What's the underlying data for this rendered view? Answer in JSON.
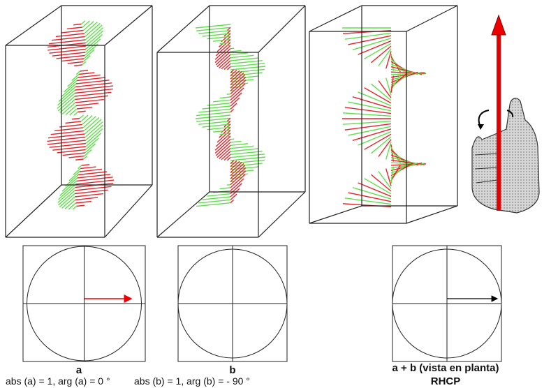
{
  "panels": [
    {
      "label": "a",
      "caption": "abs (a) = 1, arg (a) = 0 °"
    },
    {
      "label": "b",
      "caption": "abs (b) = 1, arg (b) = - 90 °"
    },
    {
      "label": "a + b (vista en planta)",
      "caption": "RHCP"
    }
  ]
}
